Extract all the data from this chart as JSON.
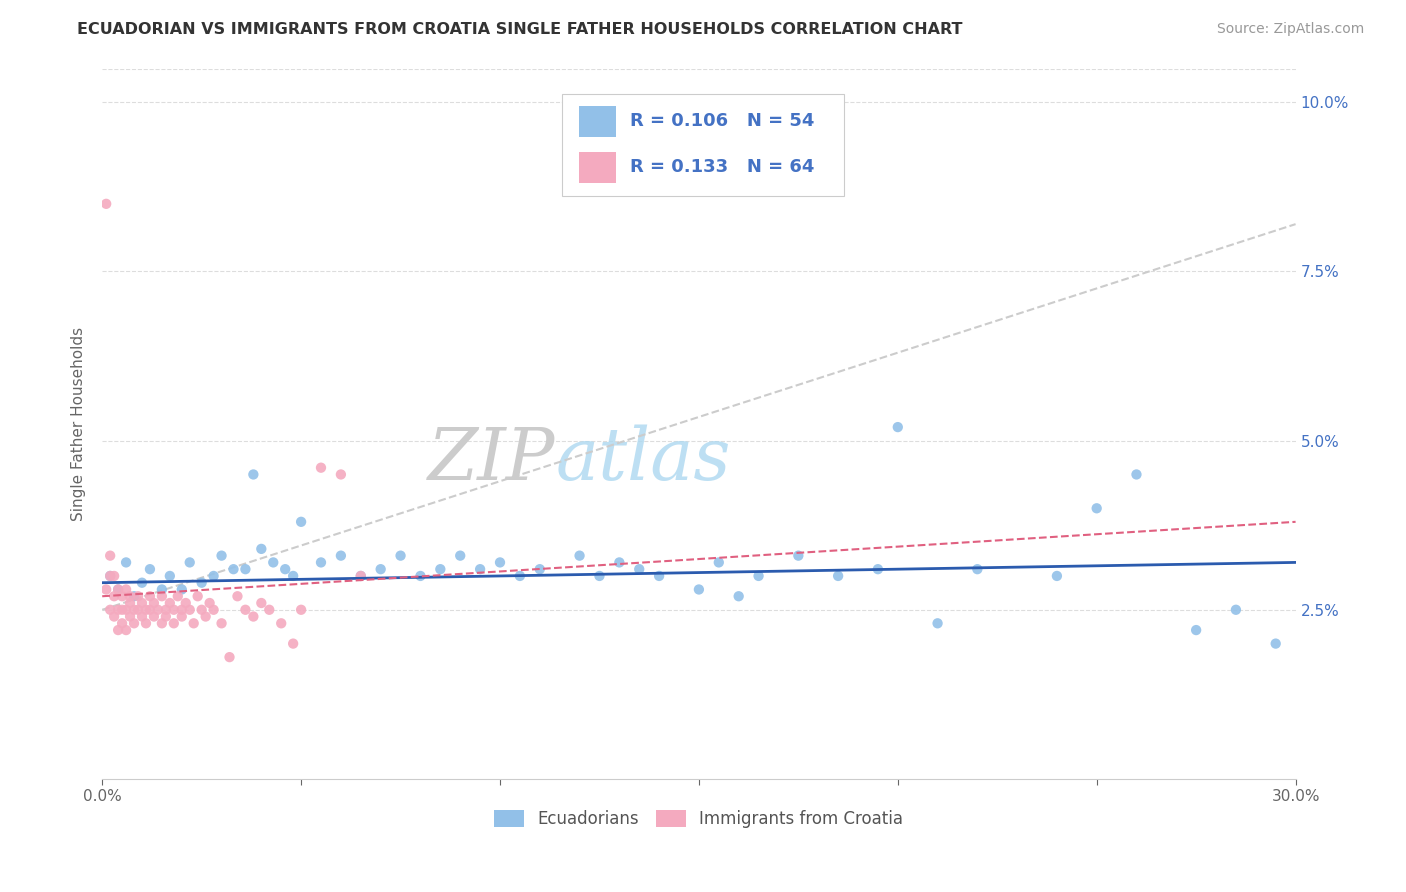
{
  "title": "ECUADORIAN VS IMMIGRANTS FROM CROATIA SINGLE FATHER HOUSEHOLDS CORRELATION CHART",
  "source": "Source: ZipAtlas.com",
  "ylabel": "Single Father Households",
  "x_min": 0.0,
  "x_max": 0.3,
  "y_min": 0.0,
  "y_max": 0.105,
  "x_ticks": [
    0.0,
    0.05,
    0.1,
    0.15,
    0.2,
    0.25,
    0.3
  ],
  "y_ticks": [
    0.0,
    0.025,
    0.05,
    0.075,
    0.1
  ],
  "blue_color": "#92C0E8",
  "pink_color": "#F4AABF",
  "blue_line_color": "#2B5BAE",
  "pink_line_color": "#E06080",
  "grey_dash_color": "#CCCCCC",
  "watermark_color": "#DEDEDE",
  "blue_R": 0.106,
  "blue_N": 54,
  "pink_R": 0.133,
  "pink_N": 64,
  "blue_line_y0": 0.029,
  "blue_line_y1": 0.032,
  "pink_line_y0": 0.027,
  "pink_line_y1": 0.038,
  "grey_line_y0": 0.025,
  "grey_line_y1": 0.082,
  "blue_x": [
    0.002,
    0.004,
    0.006,
    0.008,
    0.01,
    0.012,
    0.015,
    0.017,
    0.02,
    0.022,
    0.025,
    0.028,
    0.03,
    0.033,
    0.036,
    0.038,
    0.04,
    0.043,
    0.046,
    0.048,
    0.05,
    0.055,
    0.06,
    0.065,
    0.07,
    0.075,
    0.08,
    0.085,
    0.09,
    0.095,
    0.1,
    0.105,
    0.11,
    0.12,
    0.125,
    0.13,
    0.135,
    0.14,
    0.15,
    0.155,
    0.16,
    0.165,
    0.175,
    0.185,
    0.195,
    0.2,
    0.21,
    0.22,
    0.24,
    0.25,
    0.26,
    0.275,
    0.285,
    0.295
  ],
  "blue_y": [
    0.03,
    0.028,
    0.032,
    0.027,
    0.029,
    0.031,
    0.028,
    0.03,
    0.028,
    0.032,
    0.029,
    0.03,
    0.033,
    0.031,
    0.031,
    0.045,
    0.034,
    0.032,
    0.031,
    0.03,
    0.038,
    0.032,
    0.033,
    0.03,
    0.031,
    0.033,
    0.03,
    0.031,
    0.033,
    0.031,
    0.032,
    0.03,
    0.031,
    0.033,
    0.03,
    0.032,
    0.031,
    0.03,
    0.028,
    0.032,
    0.027,
    0.03,
    0.033,
    0.03,
    0.031,
    0.052,
    0.023,
    0.031,
    0.03,
    0.04,
    0.045,
    0.022,
    0.025,
    0.02
  ],
  "pink_x": [
    0.001,
    0.001,
    0.002,
    0.002,
    0.002,
    0.003,
    0.003,
    0.003,
    0.004,
    0.004,
    0.004,
    0.005,
    0.005,
    0.005,
    0.006,
    0.006,
    0.006,
    0.007,
    0.007,
    0.007,
    0.008,
    0.008,
    0.009,
    0.009,
    0.01,
    0.01,
    0.011,
    0.011,
    0.012,
    0.012,
    0.013,
    0.013,
    0.014,
    0.015,
    0.015,
    0.016,
    0.016,
    0.017,
    0.018,
    0.018,
    0.019,
    0.02,
    0.02,
    0.021,
    0.022,
    0.023,
    0.024,
    0.025,
    0.026,
    0.027,
    0.028,
    0.03,
    0.032,
    0.034,
    0.036,
    0.038,
    0.04,
    0.042,
    0.045,
    0.048,
    0.05,
    0.055,
    0.06,
    0.065
  ],
  "pink_y": [
    0.085,
    0.028,
    0.025,
    0.03,
    0.033,
    0.027,
    0.024,
    0.03,
    0.025,
    0.022,
    0.028,
    0.025,
    0.023,
    0.027,
    0.025,
    0.022,
    0.028,
    0.027,
    0.024,
    0.026,
    0.025,
    0.023,
    0.027,
    0.025,
    0.024,
    0.026,
    0.025,
    0.023,
    0.027,
    0.025,
    0.024,
    0.026,
    0.025,
    0.023,
    0.027,
    0.025,
    0.024,
    0.026,
    0.025,
    0.023,
    0.027,
    0.025,
    0.024,
    0.026,
    0.025,
    0.023,
    0.027,
    0.025,
    0.024,
    0.026,
    0.025,
    0.023,
    0.018,
    0.027,
    0.025,
    0.024,
    0.026,
    0.025,
    0.023,
    0.02,
    0.025,
    0.046,
    0.045,
    0.03
  ]
}
